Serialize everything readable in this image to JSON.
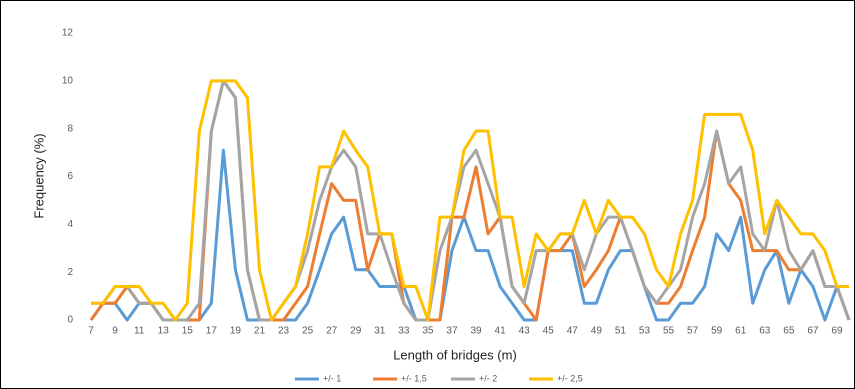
{
  "chart_data": {
    "type": "line",
    "x_label": "Length of bridges (m)",
    "y_label": "Frequency (%)",
    "x": [
      7,
      8,
      9,
      10,
      11,
      12,
      13,
      14,
      15,
      16,
      17,
      18,
      19,
      20,
      21,
      22,
      23,
      24,
      25,
      26,
      27,
      28,
      29,
      30,
      31,
      32,
      33,
      34,
      35,
      36,
      37,
      38,
      39,
      40,
      41,
      42,
      43,
      44,
      45,
      46,
      47,
      48,
      49,
      50,
      51,
      52,
      53,
      54,
      55,
      56,
      57,
      58,
      59,
      60,
      61,
      62,
      63,
      64,
      65,
      66,
      67,
      68,
      69,
      70
    ],
    "xlim": [
      6.5,
      70
    ],
    "xticks": [
      7,
      9,
      11,
      13,
      15,
      17,
      19,
      21,
      23,
      25,
      27,
      29,
      31,
      33,
      35,
      37,
      39,
      41,
      43,
      45,
      47,
      49,
      51,
      53,
      55,
      57,
      59,
      61,
      63,
      65,
      67,
      69
    ],
    "ylim": [
      0,
      12
    ],
    "yticks": [
      0,
      2,
      4,
      6,
      8,
      10,
      12
    ],
    "grid": false,
    "series": [
      {
        "name": "+/- 1",
        "color": "#5b9bd5",
        "values": [
          0,
          0.7,
          0.7,
          0,
          0.7,
          0.7,
          0,
          0,
          0,
          0,
          0.7,
          7.1,
          2.1,
          0,
          0,
          0,
          0,
          0,
          0.7,
          2.1,
          3.6,
          4.3,
          2.1,
          2.1,
          1.4,
          1.4,
          1.4,
          0,
          0,
          0,
          2.9,
          4.3,
          2.9,
          2.9,
          1.4,
          0.7,
          0,
          0,
          2.9,
          2.9,
          2.9,
          0.7,
          0.7,
          2.1,
          2.9,
          2.9,
          1.4,
          0,
          0,
          0.7,
          0.7,
          1.4,
          3.6,
          2.9,
          4.3,
          0.7,
          2.1,
          2.9,
          0.7,
          2.1,
          1.4,
          0,
          1.4,
          0
        ]
      },
      {
        "name": "+/- 1,5",
        "color": "#ed7d31",
        "values": [
          0,
          0.7,
          0.7,
          1.4,
          0.7,
          0.7,
          0,
          0,
          0,
          0,
          7.9,
          10,
          9.3,
          2.1,
          0,
          0,
          0,
          0.7,
          1.4,
          3.6,
          5.7,
          5,
          5,
          2.1,
          3.6,
          3.6,
          0.7,
          0,
          0,
          0,
          4.3,
          4.3,
          6.4,
          3.6,
          4.3,
          1.4,
          0.7,
          0,
          2.9,
          2.9,
          3.6,
          1.4,
          2.1,
          2.9,
          4.3,
          2.9,
          1.4,
          0.7,
          0.7,
          1.4,
          2.9,
          4.3,
          7.9,
          5.7,
          5,
          2.9,
          2.9,
          2.9,
          2.1,
          2.1,
          2.9,
          1.4,
          1.4,
          0
        ]
      },
      {
        "name": "+/- 2",
        "color": "#a5a5a5",
        "values": [
          0.7,
          0.7,
          1.4,
          1.4,
          0.7,
          0.7,
          0,
          0,
          0,
          0.7,
          7.9,
          10,
          9.3,
          2.1,
          0,
          0,
          0.7,
          1.4,
          2.9,
          5,
          6.4,
          7.1,
          6.4,
          3.6,
          3.6,
          2.1,
          0.7,
          0,
          0,
          2.9,
          4.3,
          6.4,
          7.1,
          5.7,
          4.3,
          1.4,
          0.7,
          2.9,
          2.9,
          3.6,
          3.6,
          2.1,
          3.6,
          4.3,
          4.3,
          2.9,
          1.4,
          0.7,
          1.4,
          2.1,
          4.3,
          5.7,
          7.9,
          5.7,
          6.4,
          3.6,
          2.9,
          5,
          2.9,
          2.1,
          2.9,
          1.4,
          1.4,
          0
        ]
      },
      {
        "name": "+/- 2,5",
        "color": "#ffc000",
        "values": [
          0.7,
          0.7,
          1.4,
          1.4,
          1.4,
          0.7,
          0.7,
          0,
          0.7,
          7.9,
          10,
          10,
          10,
          9.3,
          2.1,
          0,
          0.7,
          1.4,
          3.6,
          6.4,
          6.4,
          7.9,
          7.1,
          6.4,
          3.6,
          3.6,
          1.4,
          1.4,
          0,
          4.3,
          4.3,
          7.1,
          7.9,
          7.9,
          4.3,
          4.3,
          1.4,
          3.6,
          2.9,
          3.6,
          3.6,
          5,
          3.6,
          5,
          4.3,
          4.3,
          3.6,
          2.1,
          1.4,
          3.6,
          5,
          8.6,
          8.6,
          8.6,
          8.6,
          7.1,
          3.6,
          5,
          4.3,
          3.6,
          3.6,
          2.9,
          1.4,
          1.4
        ]
      }
    ]
  }
}
